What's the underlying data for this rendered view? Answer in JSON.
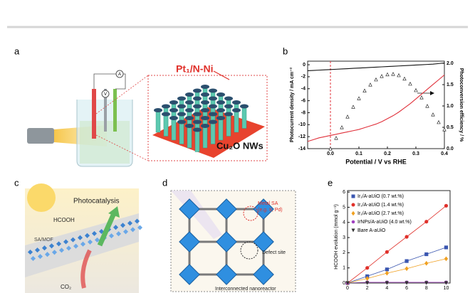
{
  "panels": {
    "a": {
      "label": "a",
      "catalyst": "Pt₁/N-Ni",
      "substrate": "Cu₂O NWs",
      "ammeter": "A",
      "voltmeter": "V"
    },
    "b": {
      "label": "b"
    },
    "c": {
      "label": "c",
      "title": "Photocatalysis",
      "product": "HCOOH",
      "support": "SA/MOF",
      "reactant": "CO₂"
    },
    "d": {
      "label": "d",
      "metal_sa": "Metal SA",
      "metal_sa_examples": "(e.g. Ir, Pd)",
      "defect": "Defect site",
      "nanoreactor": "Interconnected nanoreactor"
    },
    "e": {
      "label": "e"
    }
  },
  "chart_data": [
    {
      "type": "line",
      "x_label": "Potential / V vs RHE",
      "y_label": "Photocurrent density / mA cm⁻²",
      "y2_label": "Photoconversion efficiency / %",
      "x": [
        -0.08,
        -0.06,
        -0.04,
        -0.02,
        0,
        0.02,
        0.04,
        0.06,
        0.08,
        0.1,
        0.12,
        0.14,
        0.16,
        0.18,
        0.2,
        0.22,
        0.24,
        0.26,
        0.28,
        0.3,
        0.32,
        0.34,
        0.36,
        0.38,
        0.4
      ],
      "xlim": [
        -0.08,
        0.4
      ],
      "xticks": [
        {
          "value": 0,
          "label": "0.0"
        },
        0.1,
        0.2,
        0.3,
        0.4
      ],
      "ylim": [
        -14,
        0.6
      ],
      "yticks": [
        0,
        -2,
        -4,
        -6,
        -8,
        -10,
        -12,
        -14
      ],
      "y2lim": [
        0,
        2.05
      ],
      "y2ticks": [
        {
          "value": 0,
          "label": "0.0"
        },
        0.5,
        {
          "value": 1,
          "label": "1.0"
        },
        1.5,
        {
          "value": 2,
          "label": "2.0"
        }
      ],
      "ref_x": 0,
      "ref_color": "#e0303a",
      "series": [
        {
          "color": "#111111",
          "marker": "none",
          "values": [
            -1.0,
            -0.95,
            -0.9,
            -0.85,
            -0.8,
            -0.75,
            -0.7,
            -0.65,
            -0.6,
            -0.55,
            -0.5,
            -0.45,
            -0.4,
            -0.35,
            -0.3,
            -0.25,
            -0.2,
            -0.15,
            -0.1,
            -0.05,
            0.0,
            0.05,
            0.1,
            0.2,
            0.3
          ]
        },
        {
          "color": "#e0303a",
          "marker": "none",
          "values": [
            -12.8,
            -12.5,
            -12.2,
            -12.0,
            -11.8,
            -11.6,
            -11.4,
            -11.2,
            -11.0,
            -10.8,
            -10.5,
            -10.2,
            -9.9,
            -9.5,
            -9.0,
            -8.5,
            -7.9,
            -7.2,
            -6.5,
            -5.7,
            -4.9,
            -4.1,
            -3.3,
            -2.5,
            -1.7
          ]
        },
        {
          "color": "#111111",
          "marker": "triangle-open",
          "axis": "y2",
          "values": [
            null,
            null,
            null,
            null,
            0.0,
            0.25,
            0.5,
            0.75,
            0.98,
            1.18,
            1.36,
            1.5,
            1.62,
            1.7,
            1.74,
            1.75,
            1.72,
            1.64,
            1.52,
            1.37,
            1.2,
            1.0,
            0.8,
            0.62,
            0.45
          ]
        }
      ]
    },
    {
      "type": "line",
      "y_label": "HCOOH evolution (mmol g⁻¹)",
      "x": [
        0,
        2,
        4,
        6,
        8,
        10
      ],
      "xlim": [
        0,
        10.4
      ],
      "xticks": [
        0,
        2,
        4,
        6,
        8,
        10
      ],
      "ylim": [
        0,
        6.1
      ],
      "yticks": [
        0,
        1,
        2,
        3,
        4,
        5,
        6
      ],
      "legend": "upper left",
      "series": [
        {
          "name": "Ir₁/A-aUiO (0.7 wt.%)",
          "color": "#3a56b0",
          "marker": "square",
          "values": [
            0,
            0.45,
            0.9,
            1.45,
            1.9,
            2.35
          ]
        },
        {
          "name": "Ir₁/A-aUiO (1.4 wt.%)",
          "color": "#e0302a",
          "marker": "circle",
          "values": [
            0,
            1.0,
            2.05,
            3.05,
            4.05,
            5.1
          ]
        },
        {
          "name": "Ir₁/A-aUiO (2.7 wt.%)",
          "color": "#f0a020",
          "marker": "diamond",
          "values": [
            0,
            0.3,
            0.65,
            0.95,
            1.3,
            1.6
          ]
        },
        {
          "name": "IrNPs/A-aUiO (4.0 wt.%)",
          "color": "#a040c0",
          "marker": "hexagon",
          "values": [
            0,
            0.05,
            0.05,
            0.05,
            0.05,
            0.05
          ]
        },
        {
          "name": "Bare A-aUiO",
          "color": "#333333",
          "marker": "triangle-down",
          "values": [
            0,
            0,
            0,
            0,
            0,
            0
          ]
        }
      ]
    }
  ]
}
